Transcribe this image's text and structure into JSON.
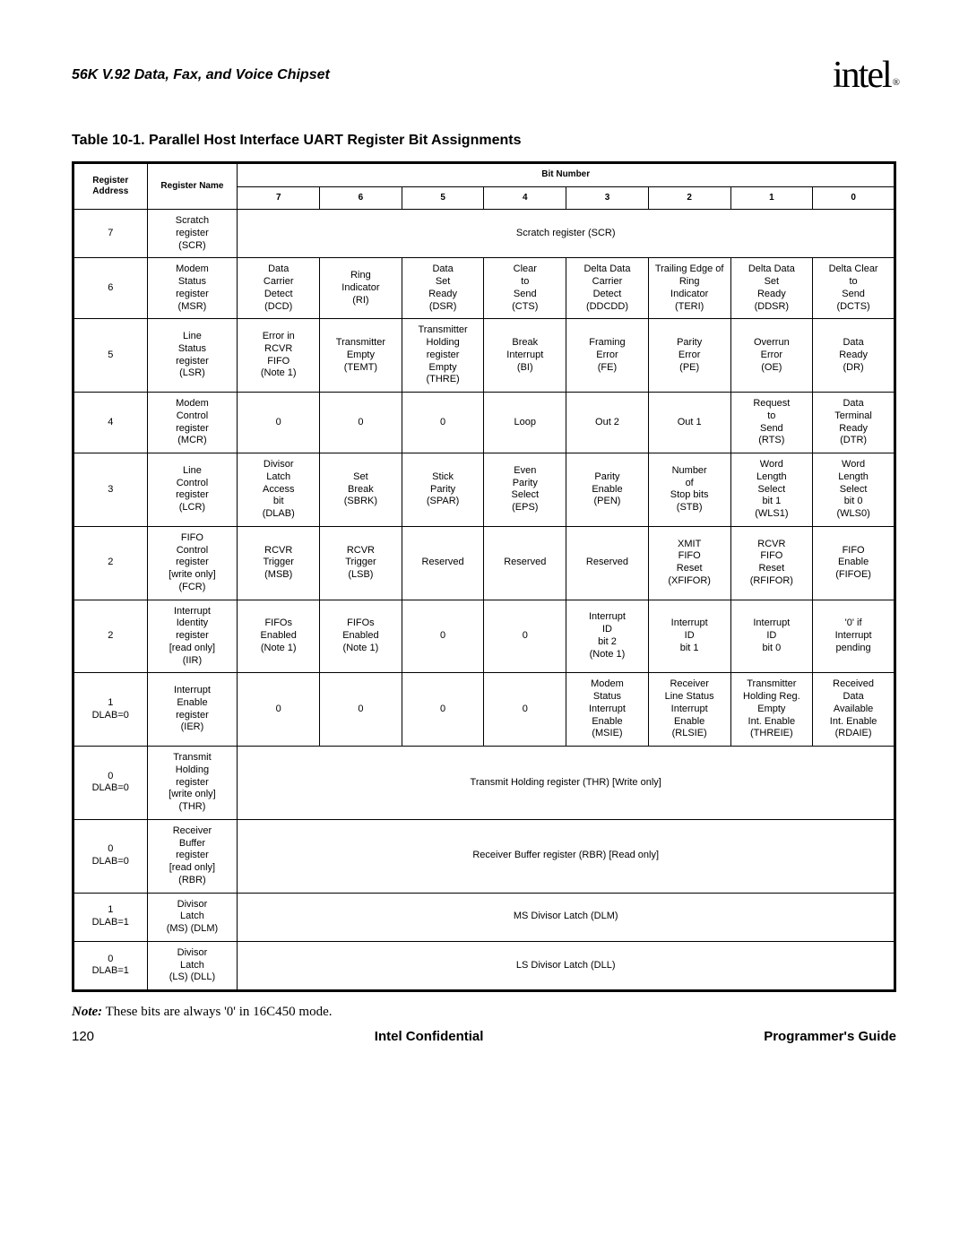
{
  "header": {
    "subtitle": "56K V.92 Data, Fax, and Voice Chipset",
    "logo": "intel",
    "logo_sub": "®"
  },
  "table_title": "Table 10-1.  Parallel Host Interface UART Register Bit Assignments",
  "columns": {
    "addr": "Register Address",
    "name": "Register Name",
    "bitnum": "Bit Number",
    "bits": [
      "7",
      "6",
      "5",
      "4",
      "3",
      "2",
      "1",
      "0"
    ]
  },
  "rows": [
    {
      "addr": "7",
      "name": "Scratch register (SCR)",
      "span": "Scratch register (SCR)"
    },
    {
      "addr": "6",
      "name": "Modem Status register (MSR)",
      "cells": [
        "Data Carrier Detect (DCD)",
        "Ring Indicator (RI)",
        "Data Set Ready (DSR)",
        "Clear to Send (CTS)",
        "Delta Data Carrier Detect (DDCDD)",
        "Trailing Edge of Ring Indicator (TERI)",
        "Delta Data Set Ready (DDSR)",
        "Delta Clear to Send (DCTS)"
      ]
    },
    {
      "addr": "5",
      "name": "Line Status register (LSR)",
      "cells": [
        "Error in RCVR FIFO (Note 1)",
        "Transmitter Empty (TEMT)",
        "Transmitter Holding register Empty (THRE)",
        "Break Interrupt (BI)",
        "Framing Error (FE)",
        "Parity Error (PE)",
        "Overrun Error (OE)",
        "Data Ready (DR)"
      ]
    },
    {
      "addr": "4",
      "name": "Modem Control register (MCR)",
      "cells": [
        "0",
        "0",
        "0",
        "Loop",
        "Out 2",
        "Out 1",
        "Request to Send (RTS)",
        "Data Terminal Ready (DTR)"
      ]
    },
    {
      "addr": "3",
      "name": "Line Control register (LCR)",
      "cells": [
        "Divisor Latch Access bit (DLAB)",
        "Set Break (SBRK)",
        "Stick Parity (SPAR)",
        "Even Parity Select (EPS)",
        "Parity Enable (PEN)",
        "Number of Stop bits (STB)",
        "Word Length Select bit 1 (WLS1)",
        "Word Length Select bit 0 (WLS0)"
      ]
    },
    {
      "addr": "2",
      "name": "FIFO Control register [write only] (FCR)",
      "cells": [
        "RCVR Trigger (MSB)",
        "RCVR Trigger (LSB)",
        "Reserved",
        "Reserved",
        "Reserved",
        "XMIT FIFO Reset (XFIFOR)",
        "RCVR FIFO Reset (RFIFOR)",
        "FIFO Enable (FIFOE)"
      ]
    },
    {
      "addr": "2",
      "name": "Interrupt Identity register [read only] (IIR)",
      "dashed": true,
      "cells": [
        "FIFOs Enabled (Note 1)",
        "FIFOs Enabled (Note 1)",
        "0",
        "0",
        "Interrupt ID bit 2 (Note 1)",
        "Interrupt ID bit 1",
        "Interrupt ID bit 0",
        "'0' if Interrupt pending"
      ]
    },
    {
      "addr": "1\nDLAB=0",
      "name": "Interrupt Enable register (IER)",
      "cells": [
        "0",
        "0",
        "0",
        "0",
        "Modem Status Interrupt Enable (MSIE)",
        "Receiver Line Status Interrupt Enable (RLSIE)",
        "Transmitter Holding Reg. Empty Int. Enable (THREIE)",
        "Received Data Available Int. Enable (RDAIE)"
      ]
    },
    {
      "addr": "0\nDLAB=0",
      "name": "Transmit Holding register [write only] (THR)",
      "span": "Transmit Holding register (THR)   [Write only]"
    },
    {
      "addr": "0\nDLAB=0",
      "name": "Receiver Buffer register [read only] (RBR)",
      "dashed": true,
      "span": "Receiver Buffer register (RBR)   [Read only]"
    },
    {
      "addr": "1\nDLAB=1",
      "name": "Divisor Latch (MS) (DLM)",
      "span": "MS Divisor Latch (DLM)"
    },
    {
      "addr": "0\nDLAB=1",
      "name": "Divisor Latch (LS) (DLL)",
      "span": "LS Divisor Latch (DLL)"
    }
  ],
  "note": {
    "label": "Note:",
    "text": "These bits are always '0' in 16C450 mode."
  },
  "footer": {
    "page": "120",
    "center": "Intel Confidential",
    "right": "Programmer's Guide"
  }
}
